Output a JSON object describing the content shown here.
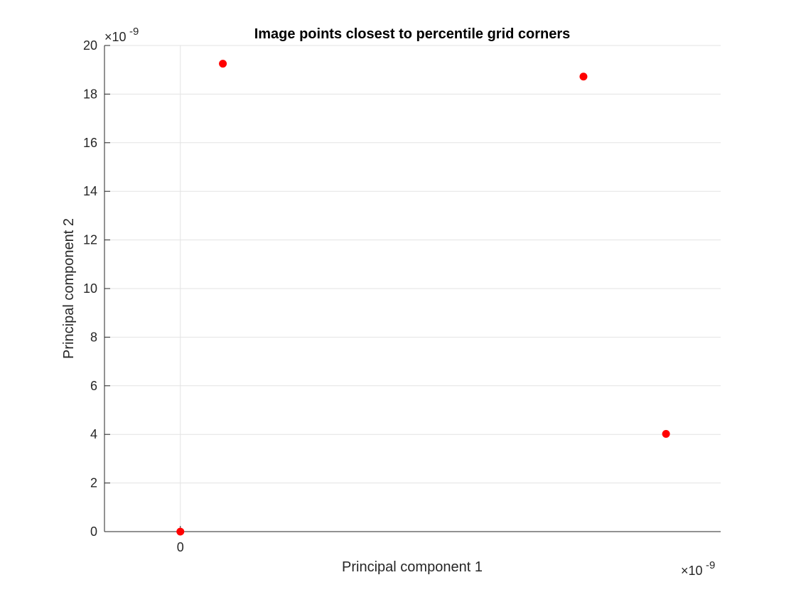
{
  "chart_data": {
    "type": "scatter",
    "title": "Image points closest to percentile grid corners",
    "xlabel": "Principal component 1",
    "ylabel": "Principal component 2",
    "x_exponent_label": "×10",
    "x_exponent_power": "-9",
    "y_exponent_label": "×10",
    "y_exponent_power": "-9",
    "xlim": [
      -0.625,
      4.45
    ],
    "ylim": [
      0,
      20
    ],
    "x_ticks": [
      0
    ],
    "x_tick_labels": [
      "0"
    ],
    "y_ticks": [
      0,
      2,
      4,
      6,
      8,
      10,
      12,
      14,
      16,
      18,
      20
    ],
    "y_tick_labels": [
      "0",
      "2",
      "4",
      "6",
      "8",
      "10",
      "12",
      "14",
      "16",
      "18",
      "20"
    ],
    "grid": true,
    "marker_color": "#ff0000",
    "points": [
      {
        "x": 0.0,
        "y": 0.0
      },
      {
        "x": 0.35,
        "y": 19.25
      },
      {
        "x": 3.32,
        "y": 18.72
      },
      {
        "x": 4.0,
        "y": 4.02
      }
    ]
  }
}
